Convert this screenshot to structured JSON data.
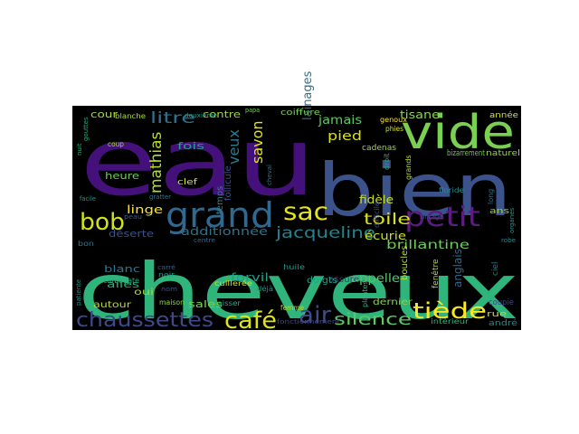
{
  "background": "#000000",
  "page_background": "#ffffff",
  "words": [
    {
      "text": "cheveux",
      "color": "#2fb47c"
    },
    {
      "text": "eau",
      "color": "#44107a"
    },
    {
      "text": "bien",
      "color": "#3b528b"
    },
    {
      "text": "vide",
      "color": "#7ad151"
    },
    {
      "text": "grand",
      "color": "#31688e"
    },
    {
      "text": "petit",
      "color": "#5c1c80"
    },
    {
      "text": "bob",
      "color": "#d2e21b"
    },
    {
      "text": "sac",
      "color": "#e5e419"
    },
    {
      "text": "café",
      "color": "#dde318"
    },
    {
      "text": "air",
      "color": "#3e4a89"
    },
    {
      "text": "chaussettes",
      "color": "#3f4889"
    },
    {
      "text": "tiède",
      "color": "#fde725"
    },
    {
      "text": "silence",
      "color": "#5ec962"
    },
    {
      "text": "toile",
      "color": "#d8e219"
    },
    {
      "text": "jacqueline",
      "color": "#25838e"
    },
    {
      "text": "mathias",
      "color": "#b5de2b"
    },
    {
      "text": "litre",
      "color": "#2c728e"
    },
    {
      "text": "jamais",
      "color": "#5ec962"
    },
    {
      "text": "savon",
      "color": "#e5e419"
    },
    {
      "text": "pied",
      "color": "#d8e219"
    },
    {
      "text": "linge",
      "color": "#fde725"
    },
    {
      "text": "heure",
      "color": "#6ccd5a"
    },
    {
      "text": "cour",
      "color": "#a5db36"
    },
    {
      "text": "fois",
      "color": "#20a386"
    },
    {
      "text": "contre",
      "color": "#9fda3a"
    },
    {
      "text": "veux",
      "color": "#287c8e"
    },
    {
      "text": "additionnée",
      "color": "#2c728e"
    },
    {
      "text": "déserte",
      "color": "#3b528b"
    },
    {
      "text": "blanc",
      "color": "#2a788e"
    },
    {
      "text": "ailes",
      "color": "#2ab07f"
    },
    {
      "text": "oui",
      "color": "#a8db34"
    },
    {
      "text": "autour",
      "color": "#b5de2b"
    },
    {
      "text": "sales",
      "color": "#7ad151"
    },
    {
      "text": "forvil",
      "color": "#1f9e89"
    },
    {
      "text": "appelle",
      "color": "#52c569"
    },
    {
      "text": "brillantine",
      "color": "#6ccd5a"
    },
    {
      "text": "écurie",
      "color": "#cae11f"
    },
    {
      "text": "fidèle",
      "color": "#c8e020"
    },
    {
      "text": "rue",
      "color": "#d0e11c"
    },
    {
      "text": "andré",
      "color": "#238a8d"
    },
    {
      "text": "dernier",
      "color": "#84d44b"
    },
    {
      "text": "tisane",
      "color": "#86d549"
    },
    {
      "text": "ans",
      "color": "#90d743"
    },
    {
      "text": "coiffure",
      "color": "#7ad151"
    },
    {
      "text": "année",
      "color": "#d2e21b"
    },
    {
      "text": "lainages",
      "color": "#2d708e"
    },
    {
      "text": "temps",
      "color": "#24868e"
    },
    {
      "text": "follicule",
      "color": "#3b528b"
    },
    {
      "text": "boucles",
      "color": "#b5de2b"
    },
    {
      "text": "fenêtre",
      "color": "#addc30"
    },
    {
      "text": "plantes",
      "color": "#2fb47c"
    },
    {
      "text": "anglais",
      "color": "#31688e"
    },
    {
      "text": "ciel",
      "color": "#2a788e"
    },
    {
      "text": "coupie",
      "color": "#414487"
    },
    {
      "text": "difficile",
      "color": "#3e4c8a"
    },
    {
      "text": "cadenas",
      "color": "#9bd93c"
    },
    {
      "text": "naturel",
      "color": "#99d83d"
    },
    {
      "text": "bizarrement",
      "color": "#6ccd5a"
    },
    {
      "text": "genoux",
      "color": "#fde725"
    },
    {
      "text": "phies",
      "color": "#d5e21a"
    },
    {
      "text": "assure",
      "color": "#453781"
    },
    {
      "text": "doigts",
      "color": "#1fa088"
    },
    {
      "text": "huile",
      "color": "#1f9a8a"
    },
    {
      "text": "déjà",
      "color": "#20928c"
    },
    {
      "text": "femme",
      "color": "#b5de2b"
    },
    {
      "text": "fonctionnement",
      "color": "#404588"
    },
    {
      "text": "intérieur",
      "color": "#2fb47c"
    },
    {
      "text": "carbonate",
      "color": "#29af7f"
    },
    {
      "text": "maison",
      "color": "#8fd744"
    },
    {
      "text": "laisser",
      "color": "#26ad81"
    },
    {
      "text": "cuillerée",
      "color": "#d0e11c"
    },
    {
      "text": "clef",
      "color": "#dde318"
    },
    {
      "text": "coup",
      "color": "#a0da39"
    },
    {
      "text": "blanche",
      "color": "#b0dd2f"
    },
    {
      "text": "papa",
      "color": "#75d054"
    },
    {
      "text": "rinçage",
      "color": "#3a548c"
    },
    {
      "text": "floride",
      "color": "#21918c"
    },
    {
      "text": "long",
      "color": "#2d718e"
    },
    {
      "text": "droit",
      "color": "#22a785"
    },
    {
      "text": "grands",
      "color": "#b8de29"
    },
    {
      "text": "bon",
      "color": "#2a788e"
    },
    {
      "text": "patiente",
      "color": "#20928c"
    },
    {
      "text": "nuit",
      "color": "#26ad81"
    },
    {
      "text": "gouttes",
      "color": "#22a884"
    },
    {
      "text": "robe",
      "color": "#23898e"
    },
    {
      "text": "organes",
      "color": "#1f968b"
    },
    {
      "text": "nom",
      "color": "#3d4e8a"
    },
    {
      "text": "noir",
      "color": "#1f9e89"
    },
    {
      "text": "cheval",
      "color": "#2c728e"
    },
    {
      "text": "peau",
      "color": "#365c8d"
    },
    {
      "text": "carré",
      "color": "#34618d"
    },
    {
      "text": "deuxième",
      "color": "#1f9e89"
    },
    {
      "text": "facile",
      "color": "#1f998a"
    },
    {
      "text": "gratter",
      "color": "#2a788e"
    },
    {
      "text": "centre",
      "color": "#31678e"
    }
  ]
}
